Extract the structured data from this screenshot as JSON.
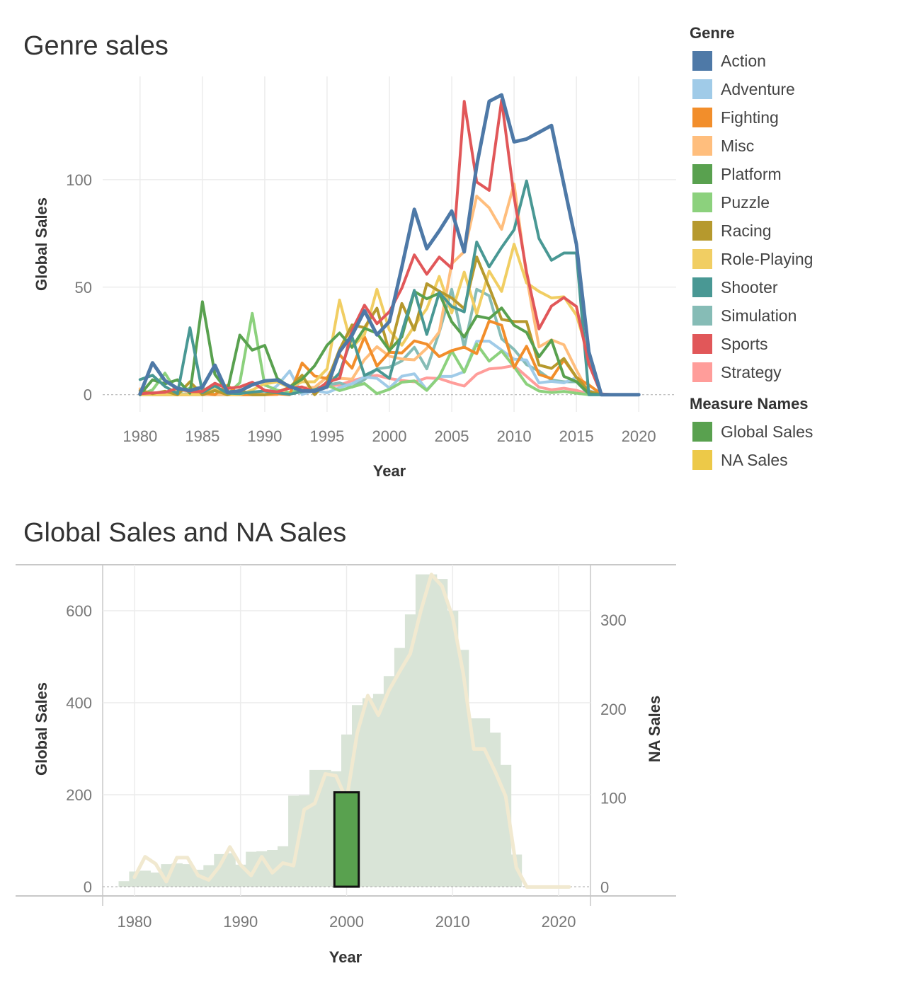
{
  "chart_data": [
    {
      "type": "line",
      "title": "Genre sales",
      "xlabel": "Year",
      "ylabel": "Global Sales",
      "xlim": [
        1977,
        2023
      ],
      "ylim": [
        -8,
        148
      ],
      "x_ticks": [
        1980,
        1985,
        1990,
        1995,
        2000,
        2005,
        2010,
        2015,
        2020
      ],
      "y_ticks": [
        0,
        50,
        100
      ],
      "grid": true,
      "legend_title": "Genre",
      "legend_position": "right",
      "years": [
        1980,
        1981,
        1982,
        1983,
        1984,
        1985,
        1986,
        1987,
        1988,
        1989,
        1990,
        1991,
        1992,
        1993,
        1994,
        1995,
        1996,
        1997,
        1998,
        1999,
        2000,
        2001,
        2002,
        2003,
        2004,
        2005,
        2006,
        2007,
        2008,
        2009,
        2010,
        2011,
        2012,
        2013,
        2014,
        2015,
        2016,
        2017,
        2018,
        2019,
        2020
      ],
      "series": [
        {
          "name": "Action",
          "color": "#4e79a7",
          "values": [
            0.3,
            14.8,
            6.5,
            2.9,
            1.9,
            3.5,
            13.7,
            1.1,
            1.7,
            4.6,
            6.4,
            6.8,
            3.8,
            1.8,
            1.6,
            3.6,
            20.0,
            27.6,
            39.0,
            27.8,
            34.0,
            59.4,
            86.2,
            67.9,
            76.2,
            85.4,
            66.4,
            106.5,
            136.4,
            139.4,
            117.6,
            118.9,
            122.0,
            125.2,
            97.6,
            70.0,
            19.9,
            0.0,
            0,
            0,
            0
          ]
        },
        {
          "name": "Adventure",
          "color": "#a0cbe8",
          "values": [
            0,
            0,
            0,
            0.4,
            0,
            0,
            0,
            1.4,
            0.1,
            0,
            0,
            4.2,
            11.0,
            0.1,
            2.0,
            0.9,
            3.3,
            5.1,
            8.2,
            7.6,
            3.1,
            8.6,
            9.7,
            2.2,
            8.5,
            8.5,
            10.7,
            24.8,
            24.9,
            20.7,
            16.5,
            16.1,
            5.5,
            6.2,
            5.5,
            8.0,
            1.9,
            0,
            0,
            0,
            0
          ]
        },
        {
          "name": "Fighting",
          "color": "#f28e2b",
          "values": [
            0.8,
            0,
            0,
            0,
            0,
            1.0,
            0,
            4.3,
            0,
            0,
            0,
            0.4,
            0,
            14.7,
            8.7,
            7.5,
            18.6,
            12.3,
            26.9,
            13.3,
            19.7,
            19.4,
            25.0,
            23.5,
            17.7,
            20.5,
            22.1,
            19.1,
            34.3,
            32.3,
            12.6,
            22.5,
            9.4,
            7.5,
            16.2,
            8.0,
            4.5,
            0.3,
            0,
            0,
            0
          ]
        },
        {
          "name": "Misc",
          "color": "#ffbe7d",
          "values": [
            2.7,
            0,
            0.9,
            2.1,
            1.5,
            0,
            0,
            0,
            0,
            1.3,
            0,
            0,
            3.5,
            3.1,
            3.4,
            8.2,
            7.6,
            7.2,
            16.3,
            22.3,
            17.9,
            16.6,
            16.2,
            21.6,
            29.2,
            60.9,
            66.5,
            92.3,
            86.9,
            76.9,
            98.0,
            55.0,
            22.2,
            25.5,
            23.2,
            11.5,
            0.8,
            0,
            0,
            0,
            0
          ]
        },
        {
          "name": "Platform",
          "color": "#59a14f",
          "values": [
            0,
            6.9,
            5.0,
            6.9,
            0.7,
            43.2,
            9.4,
            1.7,
            27.7,
            20.7,
            22.9,
            7.6,
            3.6,
            7.2,
            13.4,
            23.0,
            28.7,
            22.0,
            30.9,
            28.6,
            20.6,
            26.9,
            48.0,
            44.6,
            47.2,
            33.9,
            26.8,
            36.6,
            35.4,
            40.3,
            32.3,
            29.0,
            17.6,
            25.3,
            8.5,
            6.1,
            0.5,
            0,
            0,
            0,
            0
          ]
        },
        {
          "name": "Puzzle",
          "color": "#8cd17d",
          "values": [
            0,
            2.2,
            10.0,
            0.8,
            3.1,
            3.2,
            0,
            0,
            5.6,
            37.8,
            4.5,
            2.1,
            1.0,
            2.5,
            2.0,
            4.4,
            1.9,
            3.6,
            5.2,
            0.5,
            2.5,
            5.8,
            6.4,
            2.0,
            8.4,
            20.4,
            10.5,
            23.6,
            15.6,
            20.3,
            13.0,
            4.9,
            1.7,
            1.0,
            1.5,
            0.7,
            0,
            0,
            0,
            0,
            0
          ]
        },
        {
          "name": "Racing",
          "color": "#b6992d",
          "values": [
            1.8,
            0.5,
            1.6,
            0,
            6.0,
            0,
            1.9,
            0,
            2.1,
            0,
            0,
            1.2,
            3.4,
            9.0,
            0,
            6.1,
            21.0,
            32.4,
            31.2,
            40.2,
            19.8,
            42.4,
            30.0,
            51.6,
            48.1,
            45.0,
            40.0,
            64.0,
            50.0,
            35.0,
            34.0,
            34.0,
            13.8,
            12.2,
            16.8,
            8.1,
            1.6,
            0,
            0,
            0,
            0
          ]
        },
        {
          "name": "Role-Playing",
          "color": "#f1ce63",
          "values": [
            0,
            0,
            0,
            0,
            0,
            0,
            2.5,
            0,
            0,
            2.2,
            5.0,
            6.0,
            3.4,
            6.0,
            6.0,
            12.0,
            44.0,
            22.0,
            28.0,
            49.0,
            30.0,
            23.0,
            32.0,
            40.0,
            55.0,
            38.0,
            57.0,
            37.5,
            57.5,
            48.0,
            70.0,
            52.0,
            48.0,
            45.0,
            45.5,
            37.0,
            18.0,
            0,
            0,
            0,
            0
          ]
        },
        {
          "name": "Shooter",
          "color": "#499894",
          "values": [
            7.0,
            9.0,
            3.8,
            0.5,
            31.1,
            1.0,
            4.1,
            0.7,
            0.5,
            1.2,
            1.7,
            0.9,
            0.2,
            1.4,
            2.3,
            4.1,
            10.1,
            27.0,
            8.9,
            11.7,
            7.6,
            29.0,
            48.5,
            28.0,
            47.5,
            41.0,
            38.5,
            71.0,
            59.4,
            68.5,
            76.7,
            99.4,
            72.6,
            62.5,
            65.9,
            65.9,
            0,
            0,
            0,
            0,
            0
          ]
        },
        {
          "name": "Simulation",
          "color": "#86bcb6",
          "values": [
            0,
            0.5,
            0,
            0,
            0.5,
            0,
            0,
            0,
            0,
            0.5,
            0,
            0.5,
            0.5,
            2.0,
            2.9,
            4.5,
            5.5,
            3.5,
            7.0,
            12.0,
            12.8,
            15.7,
            22.0,
            12.0,
            29.0,
            49.0,
            22.0,
            49.0,
            46.0,
            26.0,
            21.0,
            14.0,
            11.0,
            6.8,
            6.0,
            6.0,
            0,
            0,
            0,
            0,
            0
          ]
        },
        {
          "name": "Sports",
          "color": "#e15759",
          "values": [
            0.5,
            0.8,
            1.1,
            3.0,
            1.5,
            1.5,
            5.3,
            2.9,
            3.6,
            5.8,
            2.0,
            1.3,
            3.0,
            3.6,
            1.3,
            5.8,
            7.6,
            29.9,
            41.6,
            33.0,
            38.6,
            49.6,
            65.0,
            56.0,
            64.0,
            58.8,
            136.4,
            98.9,
            95.0,
            137.0,
            92.0,
            57.0,
            30.6,
            41.2,
            45.2,
            41.0,
            14.2,
            0.3,
            0,
            0,
            0
          ]
        },
        {
          "name": "Strategy",
          "color": "#ff9d9a",
          "values": [
            0,
            0,
            0,
            0,
            0,
            0,
            0,
            0,
            0,
            0,
            0,
            1.2,
            0.5,
            1.5,
            3.0,
            4.0,
            4.5,
            6.5,
            8.0,
            9.0,
            7.5,
            6.6,
            6.0,
            7.8,
            7.5,
            5.6,
            4.0,
            9.5,
            12.0,
            12.5,
            13.5,
            8.5,
            3.5,
            2.3,
            3.0,
            2.0,
            0.3,
            0,
            0,
            0,
            0
          ]
        }
      ]
    },
    {
      "type": "bar+line",
      "title": "Global Sales and NA Sales",
      "xlabel": "Year",
      "ylabel": "Global Sales",
      "y2label": "NA Sales",
      "xlim": [
        1977,
        2023
      ],
      "ylim": [
        -20,
        700
      ],
      "y2lim": [
        -10,
        362
      ],
      "x_ticks": [
        1980,
        1990,
        2000,
        2010,
        2020
      ],
      "y_ticks": [
        0,
        200,
        400,
        600
      ],
      "y2_ticks": [
        0,
        100,
        200,
        300
      ],
      "grid": true,
      "legend_title": "Measure Names",
      "legend_position": "right",
      "highlighted_year": 2000,
      "highlight_color": "#59a14f",
      "bar_color": "#d9e4d7",
      "line_color": "#f1e9d0",
      "years": [
        1979,
        1980,
        1981,
        1982,
        1983,
        1984,
        1985,
        1986,
        1987,
        1988,
        1989,
        1990,
        1991,
        1992,
        1993,
        1994,
        1995,
        1996,
        1997,
        1998,
        1999,
        2000,
        2001,
        2002,
        2003,
        2004,
        2005,
        2006,
        2007,
        2008,
        2009,
        2010,
        2011,
        2012,
        2013,
        2014,
        2015,
        2016,
        2017,
        2018,
        2019,
        2020,
        2021
      ],
      "global_sales": [
        12,
        33,
        35,
        31,
        49,
        51,
        49,
        37,
        47,
        71,
        73,
        48,
        76,
        77,
        80,
        88,
        198,
        199,
        254,
        254,
        251,
        331,
        395,
        410,
        419,
        458,
        519,
        592,
        679,
        679,
        669,
        600,
        515,
        366,
        366,
        335,
        265,
        70,
        1,
        0,
        0,
        0,
        0
      ],
      "na_sales": [
        null,
        11,
        34,
        26,
        6,
        33,
        33,
        13,
        8,
        23,
        45,
        25,
        13,
        34,
        16,
        27,
        24,
        87,
        94,
        127,
        125,
        98,
        173,
        215,
        193,
        221,
        242,
        262,
        310,
        351,
        338,
        303,
        240,
        155,
        155,
        130,
        102,
        22,
        0,
        0,
        0,
        0,
        0
      ],
      "series": [
        {
          "name": "Global Sales",
          "color": "#59a14f"
        },
        {
          "name": "NA Sales",
          "color": "#edc948"
        }
      ]
    }
  ],
  "legend": {
    "genre_title": "Genre",
    "genres": [
      {
        "label": "Action",
        "color": "#4e79a7"
      },
      {
        "label": "Adventure",
        "color": "#a0cbe8"
      },
      {
        "label": "Fighting",
        "color": "#f28e2b"
      },
      {
        "label": "Misc",
        "color": "#ffbe7d"
      },
      {
        "label": "Platform",
        "color": "#59a14f"
      },
      {
        "label": "Puzzle",
        "color": "#8cd17d"
      },
      {
        "label": "Racing",
        "color": "#b6992d"
      },
      {
        "label": "Role-Playing",
        "color": "#f1ce63"
      },
      {
        "label": "Shooter",
        "color": "#499894"
      },
      {
        "label": "Simulation",
        "color": "#86bcb6"
      },
      {
        "label": "Sports",
        "color": "#e15759"
      },
      {
        "label": "Strategy",
        "color": "#ff9d9a"
      }
    ],
    "measure_title": "Measure Names",
    "measures": [
      {
        "label": "Global Sales",
        "color": "#59a14f"
      },
      {
        "label": "NA Sales",
        "color": "#edc948"
      }
    ]
  }
}
